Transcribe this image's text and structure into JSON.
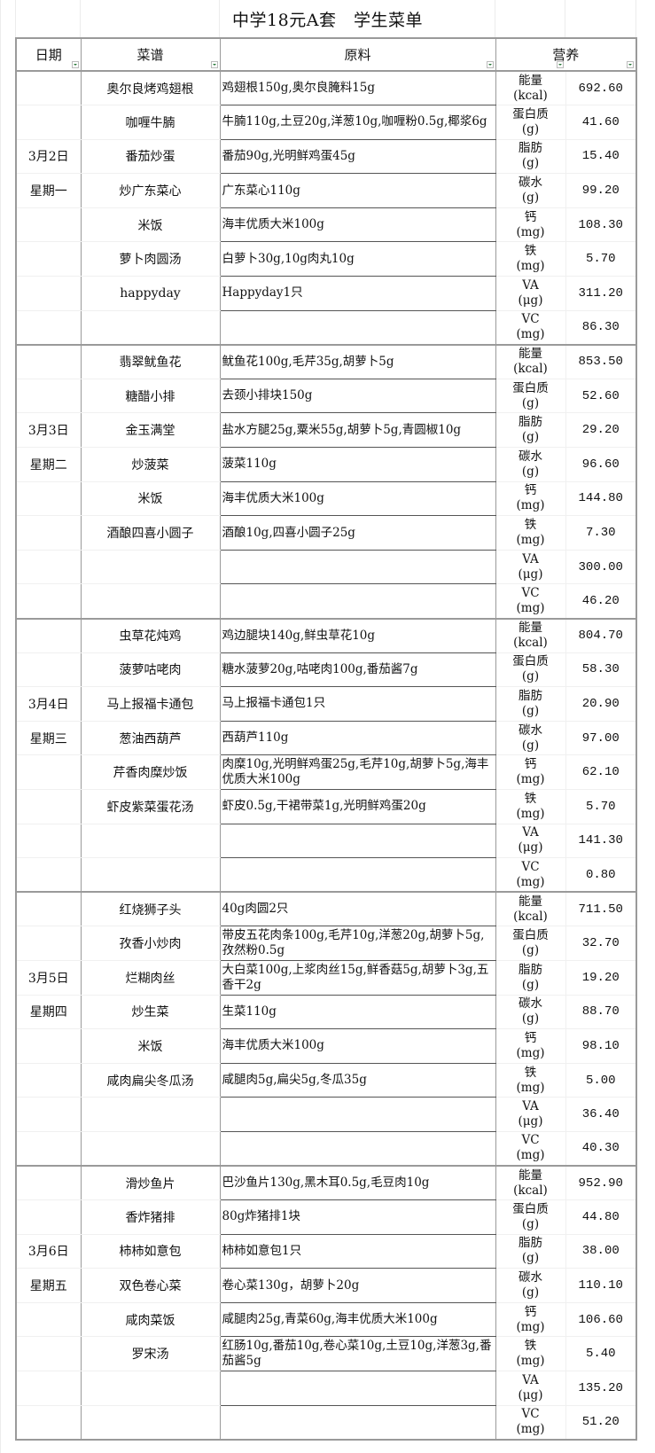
{
  "title": "中学18元A套　学生菜单",
  "headers": {
    "date": "日期",
    "dish": "菜谱",
    "ingredients": "原料",
    "nutrition": "营养"
  },
  "days": [
    {
      "date": "3月2日",
      "weekday": "星期一",
      "dishes": [
        {
          "name": "奥尔良烤鸡翅根",
          "ingredients": "鸡翅根150g,奥尔良腌料15g"
        },
        {
          "name": "咖喱牛腩",
          "ingredients": "牛腩110g,土豆20g,洋葱10g,咖喱粉0.5g,椰浆6g"
        },
        {
          "name": "番茄炒蛋",
          "ingredients": "番茄90g,光明鲜鸡蛋45g"
        },
        {
          "name": "炒广东菜心",
          "ingredients": "广东菜心110g"
        },
        {
          "name": "米饭",
          "ingredients": "海丰优质大米100g"
        },
        {
          "name": "萝卜肉圆汤",
          "ingredients": "白萝卜30g,10g肉丸10g"
        },
        {
          "name": "happyday",
          "ingredients": "Happyday1只"
        },
        {
          "name": "",
          "ingredients": ""
        }
      ],
      "nutrition": [
        {
          "label": "能量",
          "unit": "(kcal)",
          "value": "692.60"
        },
        {
          "label": "蛋白质",
          "unit": "(g)",
          "value": "41.60"
        },
        {
          "label": "脂肪",
          "unit": "(g)",
          "value": "15.40"
        },
        {
          "label": "碳水",
          "unit": "(g)",
          "value": "99.20"
        },
        {
          "label": "钙",
          "unit": "(mg)",
          "value": "108.30"
        },
        {
          "label": "铁",
          "unit": "(mg)",
          "value": "5.70"
        },
        {
          "label": "VA",
          "unit": "(μg)",
          "value": "311.20"
        },
        {
          "label": "VC",
          "unit": "(mg)",
          "value": "86.30"
        }
      ]
    },
    {
      "date": "3月3日",
      "weekday": "星期二",
      "dishes": [
        {
          "name": "翡翠鱿鱼花",
          "ingredients": "鱿鱼花100g,毛芹35g,胡萝卜5g"
        },
        {
          "name": "糖醋小排",
          "ingredients": "去颈小排块150g"
        },
        {
          "name": "金玉满堂",
          "ingredients": "盐水方腿25g,粟米55g,胡萝卜5g,青圆椒10g"
        },
        {
          "name": "炒菠菜",
          "ingredients": "菠菜110g"
        },
        {
          "name": "米饭",
          "ingredients": "海丰优质大米100g"
        },
        {
          "name": "酒酿四喜小圆子",
          "ingredients": "酒酿10g,四喜小圆子25g"
        },
        {
          "name": "",
          "ingredients": ""
        },
        {
          "name": "",
          "ingredients": ""
        }
      ],
      "nutrition": [
        {
          "label": "能量",
          "unit": "(kcal)",
          "value": "853.50"
        },
        {
          "label": "蛋白质",
          "unit": "(g)",
          "value": "52.60"
        },
        {
          "label": "脂肪",
          "unit": "(g)",
          "value": "29.20"
        },
        {
          "label": "碳水",
          "unit": "(g)",
          "value": "96.60"
        },
        {
          "label": "钙",
          "unit": "(mg)",
          "value": "144.80"
        },
        {
          "label": "铁",
          "unit": "(mg)",
          "value": "7.30"
        },
        {
          "label": "VA",
          "unit": "(μg)",
          "value": "300.00"
        },
        {
          "label": "VC",
          "unit": "(mg)",
          "value": "46.20"
        }
      ]
    },
    {
      "date": "3月4日",
      "weekday": "星期三",
      "dishes": [
        {
          "name": "虫草花炖鸡",
          "ingredients": "鸡边腿块140g,鲜虫草花10g"
        },
        {
          "name": "菠萝咕咾肉",
          "ingredients": "糖水菠萝20g,咕咾肉100g,番茄酱7g"
        },
        {
          "name": "马上报福卡通包",
          "ingredients": "马上报福卡通包1只"
        },
        {
          "name": "葱油西葫芦",
          "ingredients": "西葫芦110g"
        },
        {
          "name": "芹香肉糜炒饭",
          "ingredients": "肉糜10g,光明鲜鸡蛋25g,毛芹10g,胡萝卜5g,海丰优质大米100g"
        },
        {
          "name": "虾皮紫菜蛋花汤",
          "ingredients": "虾皮0.5g,干裙带菜1g,光明鲜鸡蛋20g"
        },
        {
          "name": "",
          "ingredients": ""
        },
        {
          "name": "",
          "ingredients": ""
        }
      ],
      "nutrition": [
        {
          "label": "能量",
          "unit": "(kcal)",
          "value": "804.70"
        },
        {
          "label": "蛋白质",
          "unit": "(g)",
          "value": "58.30"
        },
        {
          "label": "脂肪",
          "unit": "(g)",
          "value": "20.90"
        },
        {
          "label": "碳水",
          "unit": "(g)",
          "value": "97.00"
        },
        {
          "label": "钙",
          "unit": "(mg)",
          "value": "62.10"
        },
        {
          "label": "铁",
          "unit": "(mg)",
          "value": "5.70"
        },
        {
          "label": "VA",
          "unit": "(μg)",
          "value": "141.30"
        },
        {
          "label": "VC",
          "unit": "(mg)",
          "value": "0.80"
        }
      ]
    },
    {
      "date": "3月5日",
      "weekday": "星期四",
      "dishes": [
        {
          "name": "红烧狮子头",
          "ingredients": "40g肉圆2只"
        },
        {
          "name": "孜香小炒肉",
          "ingredients": "带皮五花肉条100g,毛芹10g,洋葱20g,胡萝卜5g,孜然粉0.5g"
        },
        {
          "name": "烂糊肉丝",
          "ingredients": "大白菜100g,上浆肉丝15g,鲜香菇5g,胡萝卜3g,五香干2g"
        },
        {
          "name": "炒生菜",
          "ingredients": "生菜110g"
        },
        {
          "name": "米饭",
          "ingredients": "海丰优质大米100g"
        },
        {
          "name": "咸肉扁尖冬瓜汤",
          "ingredients": "咸腿肉5g,扁尖5g,冬瓜35g"
        },
        {
          "name": "",
          "ingredients": ""
        },
        {
          "name": "",
          "ingredients": ""
        }
      ],
      "nutrition": [
        {
          "label": "能量",
          "unit": "(kcal)",
          "value": "711.50"
        },
        {
          "label": "蛋白质",
          "unit": "(g)",
          "value": "32.70"
        },
        {
          "label": "脂肪",
          "unit": "(g)",
          "value": "19.20"
        },
        {
          "label": "碳水",
          "unit": "(g)",
          "value": "88.70"
        },
        {
          "label": "钙",
          "unit": "(mg)",
          "value": "98.10"
        },
        {
          "label": "铁",
          "unit": "(mg)",
          "value": "5.00"
        },
        {
          "label": "VA",
          "unit": "(μg)",
          "value": "36.40"
        },
        {
          "label": "VC",
          "unit": "(mg)",
          "value": "40.30"
        }
      ]
    },
    {
      "date": "3月6日",
      "weekday": "星期五",
      "dishes": [
        {
          "name": "滑炒鱼片",
          "ingredients": "巴沙鱼片130g,黑木耳0.5g,毛豆肉10g"
        },
        {
          "name": "香炸猪排",
          "ingredients": "80g炸猪排1块"
        },
        {
          "name": "柿柿如意包",
          "ingredients": "柿柿如意包1只"
        },
        {
          "name": "双色卷心菜",
          "ingredients": "卷心菜130g，胡萝卜20g"
        },
        {
          "name": "咸肉菜饭",
          "ingredients": "咸腿肉25g,青菜60g,海丰优质大米100g"
        },
        {
          "name": "罗宋汤",
          "ingredients": "红肠10g,番茄10g,卷心菜10g,土豆10g,洋葱3g,番茄酱5g"
        },
        {
          "name": "",
          "ingredients": ""
        },
        {
          "name": "",
          "ingredients": ""
        }
      ],
      "nutrition": [
        {
          "label": "能量",
          "unit": "(kcal)",
          "value": "952.90"
        },
        {
          "label": "蛋白质",
          "unit": "(g)",
          "value": "44.80"
        },
        {
          "label": "脂肪",
          "unit": "(g)",
          "value": "38.00"
        },
        {
          "label": "碳水",
          "unit": "(g)",
          "value": "110.10"
        },
        {
          "label": "钙",
          "unit": "(mg)",
          "value": "106.60"
        },
        {
          "label": "铁",
          "unit": "(mg)",
          "value": "5.40"
        },
        {
          "label": "VA",
          "unit": "(μg)",
          "value": "135.20"
        },
        {
          "label": "VC",
          "unit": "(mg)",
          "value": "51.20"
        }
      ]
    }
  ]
}
